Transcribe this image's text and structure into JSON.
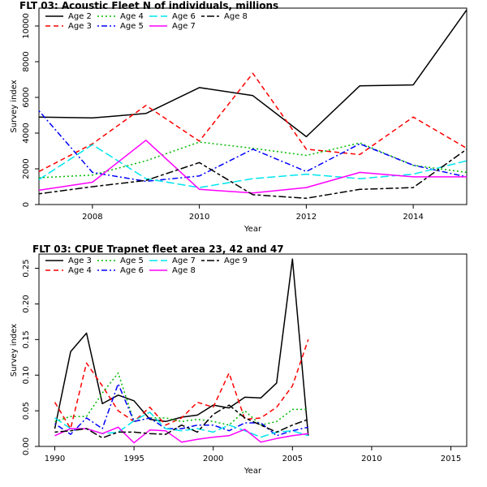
{
  "chart_data": [
    {
      "type": "line",
      "title": "FLT 03: Acoustic Fleet   N of individuals, millions",
      "xlabel": "Year",
      "ylabel": "Survey index",
      "xlim": [
        2007,
        2015
      ],
      "ylim": [
        0,
        11000
      ],
      "xticks": [
        2008,
        2010,
        2012,
        2014
      ],
      "yticks": [
        0,
        2000,
        4000,
        6000,
        8000,
        10000
      ],
      "legend_position": "top-left",
      "x": [
        2007,
        2008,
        2009,
        2010,
        2011,
        2012,
        2013,
        2014,
        2015
      ],
      "series": [
        {
          "name": "Age 2",
          "color": "#000000",
          "dash": "solid",
          "values": [
            4900,
            4850,
            5100,
            6550,
            6100,
            3800,
            6650,
            6700,
            10900
          ]
        },
        {
          "name": "Age 3",
          "color": "#ff0000",
          "dash": "dashed",
          "values": [
            1850,
            3400,
            5550,
            3550,
            7350,
            3100,
            2800,
            4900,
            3150
          ]
        },
        {
          "name": "Age 4",
          "color": "#00bb00",
          "dash": "dotted",
          "values": [
            1500,
            1650,
            2450,
            3500,
            3150,
            2750,
            3450,
            2200,
            1800
          ]
        },
        {
          "name": "Age 5",
          "color": "#0000ff",
          "dash": "dotdash",
          "values": [
            5250,
            1800,
            1300,
            1600,
            3100,
            1850,
            3400,
            2200,
            1550
          ]
        },
        {
          "name": "Age 6",
          "color": "#00e5ee",
          "dash": "longdash",
          "values": [
            1400,
            3350,
            1450,
            950,
            1450,
            1700,
            1450,
            1700,
            2450
          ]
        },
        {
          "name": "Age 7",
          "color": "#ff00ff",
          "dash": "solid",
          "values": [
            800,
            1250,
            3600,
            850,
            650,
            950,
            1800,
            1550,
            1550
          ]
        },
        {
          "name": "Age 8",
          "color": "#000000",
          "dash": "twodash",
          "values": [
            600,
            1000,
            1350,
            2350,
            550,
            350,
            850,
            950,
            3100
          ]
        }
      ]
    },
    {
      "type": "line",
      "title": "FLT 03: CPUE Trapnet fleet area 23, 42 and 47",
      "xlabel": "Year",
      "ylabel": "Survey index",
      "xlim": [
        1989,
        2016
      ],
      "ylim": [
        0,
        0.27
      ],
      "xticks": [
        1990,
        1995,
        2000,
        2005,
        2010,
        2015
      ],
      "yticks": [
        0.0,
        0.05,
        0.1,
        0.15,
        0.2,
        0.25
      ],
      "ytick_labels": [
        "0.00",
        "0.05",
        "0.10",
        "0.15",
        "0.20",
        "0.25"
      ],
      "legend_position": "top-left",
      "x": [
        1990,
        1991,
        1992,
        1993,
        1994,
        1995,
        1996,
        1997,
        1998,
        1999,
        2000,
        2001,
        2002,
        2003,
        2004,
        2005,
        2006
      ],
      "series": [
        {
          "name": "Age 3",
          "color": "#000000",
          "dash": "solid",
          "values": [
            0.025,
            0.133,
            0.159,
            0.06,
            0.072,
            0.064,
            0.038,
            0.035,
            0.041,
            0.044,
            0.058,
            0.054,
            0.069,
            0.068,
            0.089,
            0.263,
            0.015
          ]
        },
        {
          "name": "Age 4",
          "color": "#ff0000",
          "dash": "dashed",
          "values": [
            0.062,
            0.025,
            0.117,
            0.085,
            0.05,
            0.035,
            0.055,
            0.03,
            0.04,
            0.062,
            0.055,
            0.103,
            0.038,
            0.04,
            0.055,
            0.085,
            0.15
          ]
        },
        {
          "name": "Age 5",
          "color": "#00bb00",
          "dash": "dotted",
          "values": [
            0.035,
            0.042,
            0.042,
            0.075,
            0.103,
            0.035,
            0.04,
            0.04,
            0.035,
            0.038,
            0.035,
            0.03,
            0.05,
            0.03,
            0.035,
            0.052,
            0.052
          ]
        },
        {
          "name": "Age 6",
          "color": "#0000ff",
          "dash": "dotdash",
          "values": [
            0.032,
            0.017,
            0.04,
            0.025,
            0.088,
            0.035,
            0.04,
            0.025,
            0.025,
            0.03,
            0.03,
            0.022,
            0.033,
            0.033,
            0.015,
            0.022,
            0.027
          ]
        },
        {
          "name": "Age 7",
          "color": "#00e5ee",
          "dash": "longdash",
          "values": [
            0.04,
            0.025,
            0.025,
            0.018,
            0.02,
            0.036,
            0.048,
            0.025,
            0.022,
            0.025,
            0.02,
            0.03,
            0.022,
            0.013,
            0.02,
            0.022,
            0.015
          ]
        },
        {
          "name": "Age 8",
          "color": "#ff00ff",
          "dash": "solid",
          "values": [
            0.015,
            0.025,
            0.025,
            0.018,
            0.027,
            0.005,
            0.023,
            0.022,
            0.006,
            0.01,
            0.013,
            0.015,
            0.024,
            0.006,
            0.011,
            0.015,
            0.018
          ]
        },
        {
          "name": "Age 9",
          "color": "#000000",
          "dash": "twodash",
          "values": [
            0.02,
            0.022,
            0.025,
            0.012,
            0.02,
            0.02,
            0.018,
            0.017,
            0.03,
            0.02,
            0.045,
            0.058,
            0.04,
            0.03,
            0.02,
            0.03,
            0.038
          ]
        }
      ]
    }
  ]
}
